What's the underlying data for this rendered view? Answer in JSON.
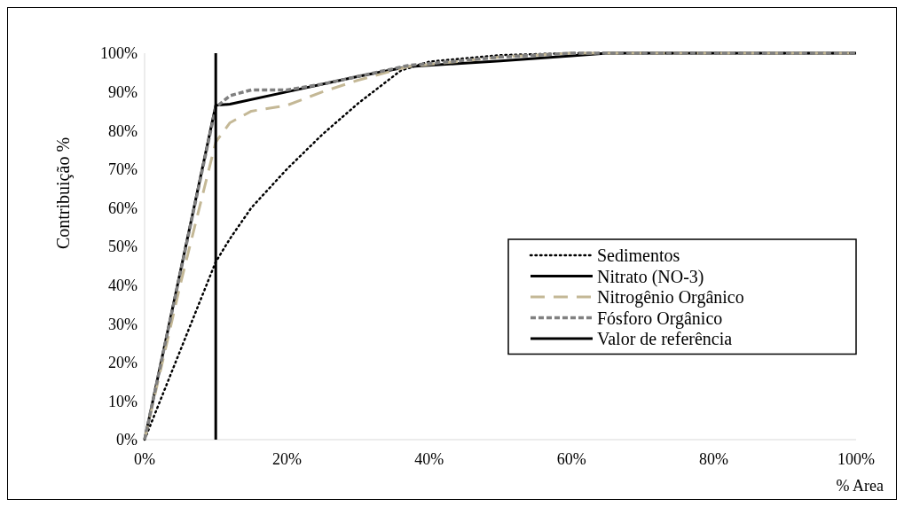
{
  "chart_data": {
    "type": "line",
    "xlabel": "% Area",
    "ylabel": "Contribuição %",
    "xlim": [
      0,
      100
    ],
    "ylim": [
      0,
      100
    ],
    "xticks": [
      {
        "value": 0,
        "label": "0%"
      },
      {
        "value": 20,
        "label": "20%"
      },
      {
        "value": 40,
        "label": "40%"
      },
      {
        "value": 60,
        "label": "60%"
      },
      {
        "value": 80,
        "label": "80%"
      },
      {
        "value": 100,
        "label": "100%"
      }
    ],
    "yticks": [
      {
        "value": 0,
        "label": "0%"
      },
      {
        "value": 10,
        "label": "10%"
      },
      {
        "value": 20,
        "label": "20%"
      },
      {
        "value": 30,
        "label": "30%"
      },
      {
        "value": 40,
        "label": "40%"
      },
      {
        "value": 50,
        "label": "50%"
      },
      {
        "value": 60,
        "label": "60%"
      },
      {
        "value": 70,
        "label": "70%"
      },
      {
        "value": 80,
        "label": "80%"
      },
      {
        "value": 90,
        "label": "90%"
      },
      {
        "value": 100,
        "label": "100%"
      }
    ],
    "grid": false,
    "legend": "right",
    "series": [
      {
        "name": "Sedimentos",
        "color": "#000000",
        "line_style": "dotted",
        "x": [
          0,
          10,
          12,
          15,
          20,
          25,
          30,
          36,
          40,
          50,
          60,
          100
        ],
        "values": [
          0,
          46,
          52,
          60,
          70,
          79,
          87,
          95.5,
          97.8,
          99.5,
          100,
          100
        ]
      },
      {
        "name": "Nitrato (NO-3)",
        "color": "#000000",
        "line_style": "solid",
        "x": [
          0,
          10,
          12,
          20,
          30,
          37,
          50,
          60,
          65,
          100
        ],
        "values": [
          0,
          86.5,
          86.8,
          90,
          94,
          96.5,
          98,
          99.3,
          100,
          100
        ]
      },
      {
        "name": "Nitrogênio Orgânico",
        "color": "#c4b896",
        "line_style": "longdash",
        "x": [
          0,
          5,
          10,
          12,
          15,
          20,
          25,
          30,
          37,
          50,
          60,
          100
        ],
        "values": [
          0,
          40,
          77,
          82,
          85,
          86.5,
          90,
          93,
          96.5,
          99,
          100,
          100
        ]
      },
      {
        "name": "Fósforo Orgânico",
        "color": "#808080",
        "line_style": "dashed",
        "x": [
          0,
          10,
          12,
          15,
          20,
          25,
          30,
          37,
          50,
          60,
          100
        ],
        "values": [
          0,
          86,
          89,
          90.5,
          90.5,
          92,
          94,
          96.8,
          99,
          100,
          100
        ]
      },
      {
        "name": "Valor de referência",
        "color": "#000000",
        "line_style": "solid",
        "x": [
          10,
          10
        ],
        "values": [
          0,
          100
        ]
      }
    ]
  }
}
